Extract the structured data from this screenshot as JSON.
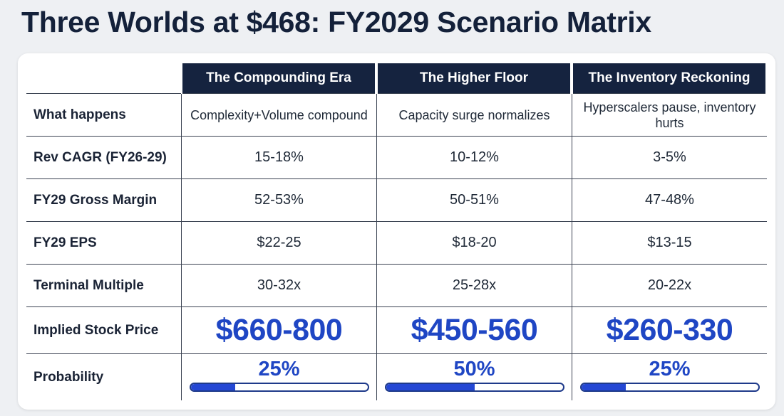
{
  "title": "Three Worlds at $468: FY2029 Scenario Matrix",
  "scenarios": [
    {
      "name": "The Compounding Era",
      "what_happens": "Complexity+Volume compound",
      "rev_cagr": "15-18%",
      "gross_margin": "52-53%",
      "eps": "$22-25",
      "terminal_multiple": "30-32x",
      "implied_price": "$660-800",
      "probability_label": "25%",
      "probability": 0.25
    },
    {
      "name": "The Higher Floor",
      "what_happens": "Capacity surge normalizes",
      "rev_cagr": "10-12%",
      "gross_margin": "50-51%",
      "eps": "$18-20",
      "terminal_multiple": "25-28x",
      "implied_price": "$450-560",
      "probability_label": "50%",
      "probability": 0.5
    },
    {
      "name": "The Inventory Reckoning",
      "what_happens": "Hyperscalers pause, inventory hurts",
      "rev_cagr": "3-5%",
      "gross_margin": "47-48%",
      "eps": "$13-15",
      "terminal_multiple": "20-22x",
      "implied_price": "$260-330",
      "probability_label": "25%",
      "probability": 0.25
    }
  ],
  "rows": [
    {
      "key": "what_happens",
      "label": "What happens"
    },
    {
      "key": "rev_cagr",
      "label": "Rev CAGR (FY26-29)"
    },
    {
      "key": "gross_margin",
      "label": "FY29 Gross Margin"
    },
    {
      "key": "eps",
      "label": "FY29 EPS"
    },
    {
      "key": "terminal_multiple",
      "label": "Terminal Multiple"
    },
    {
      "key": "implied_price",
      "label": "Implied Stock Price"
    },
    {
      "key": "probability",
      "label": "Probability"
    }
  ],
  "colors": {
    "header_bg": "#15233f",
    "accent": "#1f46c4",
    "bar_fill": "#2447d4"
  }
}
